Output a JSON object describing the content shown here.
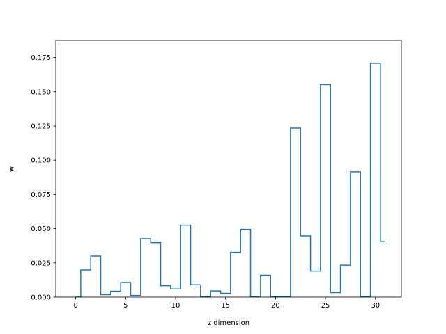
{
  "chart_data": {
    "type": "line",
    "style": "step-mid",
    "title": "",
    "xlabel": "z dimension",
    "ylabel": "w",
    "xlim": [
      -2.0,
      32.6
    ],
    "ylim": [
      0.0,
      0.1875
    ],
    "xticks": [
      0,
      5,
      10,
      15,
      20,
      25,
      30
    ],
    "yticks": [
      0.0,
      0.025,
      0.05,
      0.075,
      0.1,
      0.125,
      0.15,
      0.175
    ],
    "ytick_labels": [
      "0.000",
      "0.025",
      "0.050",
      "0.075",
      "0.100",
      "0.125",
      "0.150",
      "0.175"
    ],
    "grid": false,
    "color": "#1f77b4",
    "series": [
      {
        "x": [
          0,
          1,
          2,
          3,
          4,
          5,
          6,
          7,
          8,
          9,
          10,
          11,
          12,
          13,
          14,
          15,
          16,
          17,
          18,
          19,
          20,
          21,
          22,
          23,
          24,
          25,
          26,
          27,
          28,
          29,
          30,
          31
        ],
        "values": [
          0.0003,
          0.0198,
          0.03,
          0.0018,
          0.0043,
          0.0107,
          0.0012,
          0.0427,
          0.0398,
          0.0083,
          0.006,
          0.0525,
          0.009,
          0.0002,
          0.0045,
          0.0028,
          0.0327,
          0.0495,
          0.0003,
          0.016,
          0.0003,
          0.0003,
          0.1235,
          0.0447,
          0.019,
          0.1553,
          0.0033,
          0.0233,
          0.0915,
          0.0003,
          0.1708,
          0.0408
        ]
      }
    ]
  }
}
